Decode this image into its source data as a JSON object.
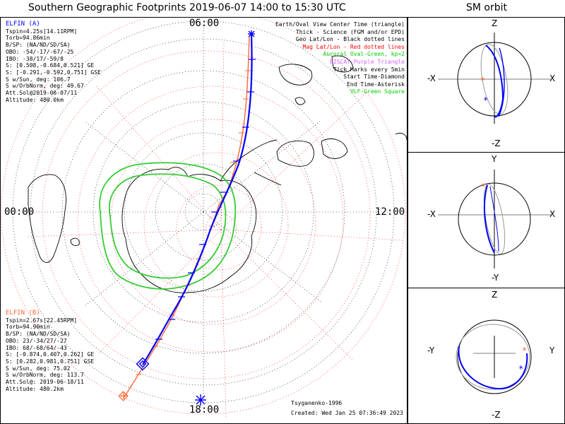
{
  "title": "Southern Geographic Footprints 2019-06-07 14:00 to 15:30 UTC",
  "orbit_title": "SM orbit",
  "clock_labels": {
    "top": "06:00",
    "left": "00:00",
    "right": "12:00",
    "bottom": "18:00"
  },
  "elfin_a": {
    "header": "ELFIN (A)",
    "lines": [
      "Tspin=4.25s[14.11RPM]",
      "Torb=94.86min",
      "B/SP: (NA/ND/SD/SA)",
      "OBO: -54/-17/-67/-25",
      "IBO: -38/17/-59/8",
      "S: [0.508,-0.684,0.521] GE",
      "S: [-0.291,-0.592,0.751] GSE",
      "S w/Sun, deg: 106.7",
      "S w/OrbNorm, deg: 49.67",
      "Att.Sol@2019-06-07/11",
      "Altitude: 480.0km"
    ],
    "color": "#0000ff"
  },
  "elfin_b": {
    "header": "ELFIN (B)",
    "lines": [
      "Tspin=2.67s[22.45RPM]",
      "Torb=94.90min",
      "B/SP: (NA/ND/SD/SA)",
      "OBO: 23/-34/27/-27",
      "IBO: 68/-68/64/-43",
      "S: [-0.874,0.407,0.262] GE",
      "S: [0.282,0.981,0.751] GSE",
      "S w/Sun, deg: 75.02",
      "S w/OrbNorm, deg: 113.7",
      "Att.Sol@: 2019-06-18/11",
      "Altitude: 480.2km"
    ],
    "color": "#ff6633"
  },
  "legend": [
    {
      "text": "Earth/Oval View Center Time (triangle)",
      "color": "#000000"
    },
    {
      "text": "Thick - Science (FGM and/or EPD)",
      "color": "#000000"
    },
    {
      "text": "Geo Lat/Lon - Black dotted lines",
      "color": "#000000"
    },
    {
      "text": "Mag Lat/Lon - Red dotted lines",
      "color": "#ff0000"
    },
    {
      "text": "Auroral Oval-Green, kp=2",
      "color": "#00cc00"
    },
    {
      "text": "EISCAT-Purple Triangle",
      "color": "#cc66ff"
    },
    {
      "text": "Tick Marks every 5min",
      "color": "#000000"
    },
    {
      "text": "Start Time-Diamond",
      "color": "#000000"
    },
    {
      "text": "End Time-Asterisk",
      "color": "#000000"
    },
    {
      "text": "VLF-Green Square",
      "color": "#00cc00"
    }
  ],
  "footer": {
    "model": "Tsyganenko-1996",
    "created": "Created: Wed Jan 25 07:36:49 2023"
  },
  "orbit_panels": [
    {
      "top": "Z",
      "bottom": "-Z",
      "left": "-X",
      "right": "X"
    },
    {
      "top": "Y",
      "bottom": "-Y",
      "left": "-X",
      "right": "X"
    },
    {
      "top": "Z",
      "bottom": "-Z",
      "left": "-Y",
      "right": "Y"
    }
  ],
  "chart_data": {
    "type": "scatter",
    "projection": "south-polar-stereographic",
    "title": "Southern Geographic Footprints 2019-06-07 14:00 to 15:30 UTC",
    "series": [
      {
        "name": "ELFIN (A)",
        "color": "#0000ff"
      },
      {
        "name": "ELFIN (B)",
        "color": "#ff6633"
      }
    ],
    "oval_kp": 2,
    "tick_interval_min": 5
  }
}
